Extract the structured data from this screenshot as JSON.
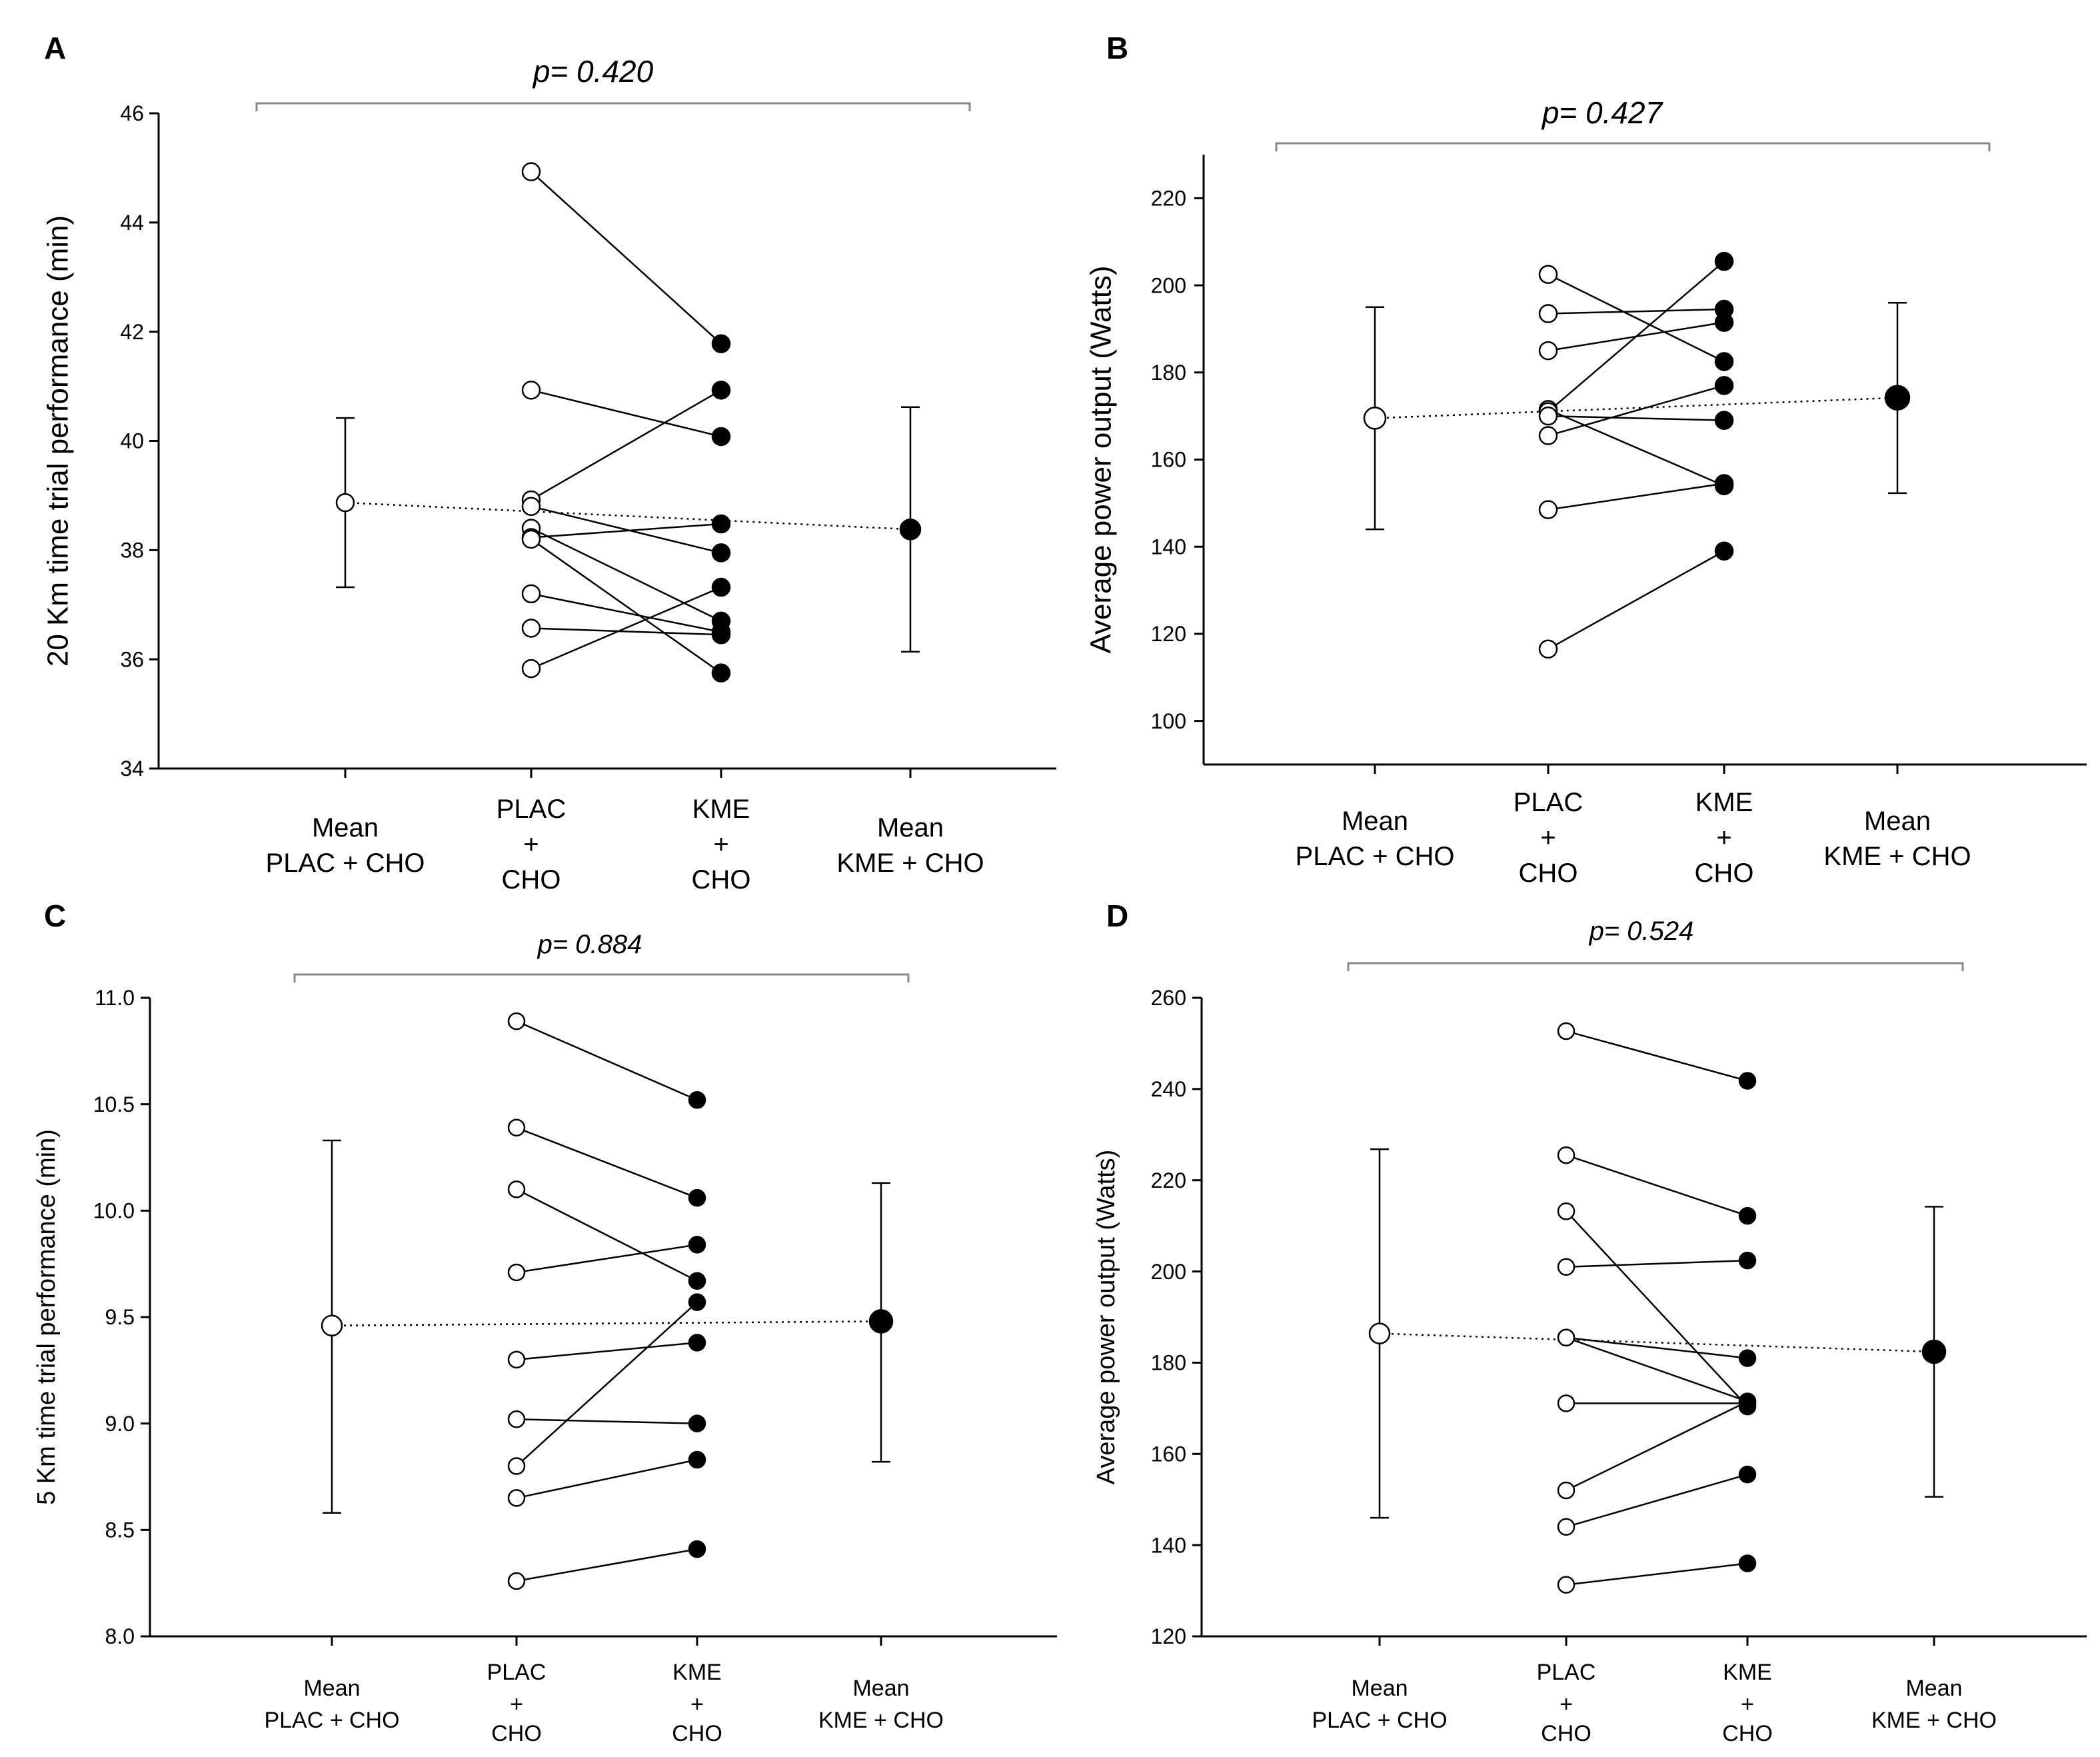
{
  "figure": {
    "background": "#ffffff",
    "ink": "#000000",
    "bracket_color": "#888888"
  },
  "chart_data": [
    {
      "panel": "A",
      "type": "scatter",
      "p_label": "p= 0.420",
      "ylabel": "20 Km time trial performance (min)",
      "ylim": [
        34,
        46
      ],
      "yticks": [
        34,
        36,
        38,
        40,
        42,
        44,
        46
      ],
      "categories": [
        [
          "Mean",
          "PLAC + CHO"
        ],
        [
          "PLAC",
          "+",
          "CHO"
        ],
        [
          "KME",
          "+",
          "CHO"
        ],
        [
          "Mean",
          "KME + CHO"
        ]
      ],
      "mean_plac": {
        "value": 38.87,
        "error_low": 37.32,
        "error_high": 40.42
      },
      "mean_kme": {
        "value": 38.38,
        "error_low": 36.14,
        "error_high": 40.62
      },
      "pairs": [
        {
          "plac": 44.93,
          "kme": 41.78
        },
        {
          "plac": 40.93,
          "kme": 40.08
        },
        {
          "plac": 38.92,
          "kme": 40.93
        },
        {
          "plac": 38.8,
          "kme": 37.95
        },
        {
          "plac": 38.4,
          "kme": 36.7
        },
        {
          "plac": 38.23,
          "kme": 38.48
        },
        {
          "plac": 38.2,
          "kme": 35.75
        },
        {
          "plac": 37.2,
          "kme": 36.5
        },
        {
          "plac": 36.57,
          "kme": 36.45
        },
        {
          "plac": 35.83,
          "kme": 37.32
        }
      ]
    },
    {
      "panel": "B",
      "type": "scatter",
      "p_label": "p= 0.427",
      "ylabel": "Average power output (Watts)",
      "ylim": [
        90,
        230
      ],
      "yticks": [
        100,
        120,
        140,
        160,
        180,
        200,
        220
      ],
      "categories": [
        [
          "Mean",
          "PLAC + CHO"
        ],
        [
          "PLAC",
          "+",
          "CHO"
        ],
        [
          "KME",
          "+",
          "CHO"
        ],
        [
          "Mean",
          "KME + CHO"
        ]
      ],
      "mean_plac": {
        "value": 169.5,
        "error_low": 144.0,
        "error_high": 195.0
      },
      "mean_kme": {
        "value": 174.2,
        "error_low": 152.3,
        "error_high": 196.0
      },
      "pairs": [
        {
          "plac": 202.5,
          "kme": 182.5
        },
        {
          "plac": 193.5,
          "kme": 194.5
        },
        {
          "plac": 185.0,
          "kme": 191.5
        },
        {
          "plac": 171.5,
          "kme": 154.0
        },
        {
          "plac": 171.0,
          "kme": 205.5
        },
        {
          "plac": 170.0,
          "kme": 169.0
        },
        {
          "plac": 165.5,
          "kme": 177.0
        },
        {
          "plac": 148.5,
          "kme": 154.5
        },
        {
          "plac": 116.5,
          "kme": 139.0
        }
      ]
    },
    {
      "panel": "C",
      "type": "scatter",
      "p_label": "p= 0.884",
      "ylabel": "5 Km time trial performance (min)",
      "ylim": [
        8.0,
        11.0
      ],
      "yticks": [
        "8.0",
        "8.5",
        "9.0",
        "9.5",
        "10.0",
        "10.5",
        "11.0"
      ],
      "categories": [
        [
          "Mean",
          "PLAC + CHO"
        ],
        [
          "PLAC",
          "+",
          "CHO"
        ],
        [
          "KME",
          "+",
          "CHO"
        ],
        [
          "Mean",
          "KME + CHO"
        ]
      ],
      "mean_plac": {
        "value": 9.46,
        "error_low": 8.58,
        "error_high": 10.33
      },
      "mean_kme": {
        "value": 9.48,
        "error_low": 8.82,
        "error_high": 10.13
      },
      "pairs": [
        {
          "plac": 10.89,
          "kme": 10.52
        },
        {
          "plac": 10.39,
          "kme": 10.06
        },
        {
          "plac": 10.1,
          "kme": 9.67
        },
        {
          "plac": 9.71,
          "kme": 9.84
        },
        {
          "plac": 9.3,
          "kme": 9.38
        },
        {
          "plac": 9.02,
          "kme": 9.0
        },
        {
          "plac": 8.8,
          "kme": 9.57
        },
        {
          "plac": 8.65,
          "kme": 8.83
        },
        {
          "plac": 8.26,
          "kme": 8.41
        }
      ]
    },
    {
      "panel": "D",
      "type": "scatter",
      "p_label": "p= 0.524",
      "ylabel": "Average power output (Watts)",
      "ylim": [
        120,
        260
      ],
      "yticks": [
        120,
        140,
        160,
        180,
        200,
        220,
        240,
        260
      ],
      "categories": [
        [
          "Mean",
          "PLAC + CHO"
        ],
        [
          "PLAC",
          "+",
          "CHO"
        ],
        [
          "KME",
          "+",
          "CHO"
        ],
        [
          "Mean",
          "KME + CHO"
        ]
      ],
      "mean_plac": {
        "value": 186.4,
        "error_low": 146.0,
        "error_high": 226.8
      },
      "mean_kme": {
        "value": 182.4,
        "error_low": 150.6,
        "error_high": 214.2
      },
      "pairs": [
        {
          "plac": 252.7,
          "kme": 241.8
        },
        {
          "plac": 225.5,
          "kme": 212.2
        },
        {
          "plac": 213.2,
          "kme": 170.4
        },
        {
          "plac": 201.0,
          "kme": 202.4
        },
        {
          "plac": 185.5,
          "kme": 181.0
        },
        {
          "plac": 185.5,
          "kme": 171.5
        },
        {
          "plac": 171.1,
          "kme": 171.1
        },
        {
          "plac": 152.0,
          "kme": 171.5
        },
        {
          "plac": 144.0,
          "kme": 155.5
        },
        {
          "plac": 131.3,
          "kme": 136.0
        }
      ]
    }
  ]
}
